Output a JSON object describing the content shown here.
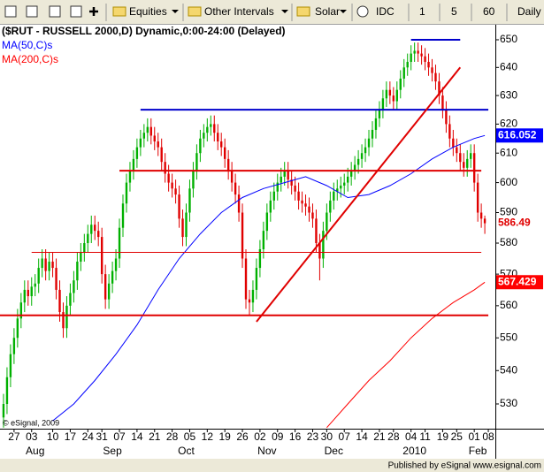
{
  "toolbar": {
    "items": [
      "Equities",
      "Other Intervals",
      "Solar",
      "IDC",
      "1",
      "5",
      "60",
      "Daily"
    ]
  },
  "chart_data": {
    "type": "candlestick",
    "title": "($RUT - RUSSELL 2000,D) Dynamic,0:00-24:00 (Delayed)",
    "copyright": "© eSignal, 2009",
    "log_scale": true,
    "grid": false,
    "legend": "top-left",
    "up_color": "#00b000",
    "down_color": "#e00000",
    "xlim": [
      -1,
      140
    ],
    "ylim": [
      522.7,
      655.5
    ],
    "yticks": [
      530,
      540,
      550,
      560,
      570,
      580,
      590,
      600,
      610,
      620,
      630,
      640,
      650
    ],
    "xticks": [
      {
        "value": 3,
        "label": "27"
      },
      {
        "value": 8,
        "label": "03"
      },
      {
        "value": 14,
        "label": "10"
      },
      {
        "value": 19,
        "label": "17"
      },
      {
        "value": 24,
        "label": "24"
      },
      {
        "value": 28,
        "label": "31"
      },
      {
        "value": 33,
        "label": "07"
      },
      {
        "value": 38,
        "label": "14"
      },
      {
        "value": 43,
        "label": "21"
      },
      {
        "value": 48,
        "label": "28"
      },
      {
        "value": 53,
        "label": "05"
      },
      {
        "value": 58,
        "label": "12"
      },
      {
        "value": 63,
        "label": "19"
      },
      {
        "value": 68,
        "label": "26"
      },
      {
        "value": 73,
        "label": "02"
      },
      {
        "value": 78,
        "label": "09"
      },
      {
        "value": 83,
        "label": "16"
      },
      {
        "value": 88,
        "label": "23"
      },
      {
        "value": 92,
        "label": "30"
      },
      {
        "value": 97,
        "label": "07"
      },
      {
        "value": 102,
        "label": "14"
      },
      {
        "value": 107,
        "label": "21"
      },
      {
        "value": 111,
        "label": "28"
      },
      {
        "value": 116,
        "label": "04"
      },
      {
        "value": 120,
        "label": "11"
      },
      {
        "value": 125,
        "label": "19"
      },
      {
        "value": 129,
        "label": "25"
      },
      {
        "value": 134,
        "label": "01"
      },
      {
        "value": 138,
        "label": "08"
      }
    ],
    "month_ticks": [
      {
        "value": 9,
        "label": "Aug"
      },
      {
        "value": 31,
        "label": "Sep"
      },
      {
        "value": 52,
        "label": "Oct"
      },
      {
        "value": 75,
        "label": "Nov"
      },
      {
        "value": 94,
        "label": "Dec"
      },
      {
        "value": 117,
        "label": "2010"
      },
      {
        "value": 135,
        "label": "Feb"
      }
    ],
    "open": [
      526,
      530,
      538,
      545,
      550,
      556,
      561,
      565,
      563,
      566,
      567,
      572,
      575,
      571,
      574,
      572,
      565,
      558,
      553,
      560,
      564,
      568,
      574,
      577,
      580,
      583,
      586,
      584,
      582,
      570,
      562,
      567,
      571,
      575,
      585,
      593,
      600,
      604,
      608,
      612,
      615,
      617,
      619,
      616,
      614,
      612,
      607,
      603,
      600,
      598,
      596,
      588,
      582,
      590,
      598,
      604,
      610,
      615,
      617,
      619,
      620,
      617,
      614,
      612,
      608,
      604,
      600,
      596,
      590,
      575,
      562,
      561,
      565,
      572,
      578,
      584,
      590,
      594,
      597,
      600,
      602,
      604,
      601,
      599,
      597,
      594,
      593,
      592,
      590,
      588,
      580,
      575,
      584,
      590,
      594,
      597,
      598,
      599,
      600,
      602,
      604,
      606,
      608,
      610,
      612,
      615,
      618,
      622,
      625,
      629,
      632,
      630,
      628,
      632,
      636,
      640,
      642,
      645,
      646,
      645,
      644,
      642,
      640,
      638,
      635,
      630,
      625,
      620,
      615,
      612,
      610,
      607,
      605,
      608,
      610,
      600,
      590,
      588
    ],
    "high": [
      533,
      541,
      548,
      553,
      559,
      564,
      568,
      568,
      569,
      570,
      575,
      578,
      578,
      577,
      577,
      575,
      568,
      561,
      563,
      567,
      571,
      577,
      580,
      583,
      586,
      589,
      589,
      587,
      585,
      573,
      570,
      574,
      578,
      588,
      596,
      603,
      607,
      611,
      615,
      618,
      620,
      622,
      622,
      619,
      617,
      615,
      610,
      606,
      603,
      601,
      599,
      591,
      593,
      601,
      607,
      613,
      618,
      620,
      622,
      623,
      623,
      620,
      617,
      615,
      611,
      607,
      603,
      599,
      593,
      578,
      565,
      568,
      575,
      581,
      587,
      593,
      597,
      600,
      603,
      605,
      607,
      607,
      604,
      602,
      600,
      597,
      596,
      595,
      593,
      591,
      583,
      587,
      593,
      597,
      600,
      601,
      602,
      603,
      605,
      607,
      609,
      611,
      613,
      615,
      618,
      621,
      625,
      628,
      632,
      635,
      635,
      633,
      635,
      639,
      643,
      645,
      648,
      649,
      649,
      648,
      647,
      645,
      643,
      641,
      638,
      633,
      628,
      623,
      618,
      615,
      613,
      610,
      611,
      613,
      613,
      603,
      593,
      589
    ],
    "low": [
      523,
      527,
      535,
      542,
      547,
      553,
      558,
      560,
      560,
      563,
      564,
      569,
      568,
      568,
      569,
      562,
      555,
      550,
      550,
      557,
      561,
      565,
      571,
      574,
      577,
      580,
      581,
      579,
      567,
      559,
      559,
      564,
      568,
      572,
      582,
      590,
      597,
      601,
      605,
      609,
      612,
      614,
      613,
      611,
      609,
      604,
      600,
      597,
      595,
      593,
      585,
      579,
      579,
      587,
      595,
      601,
      607,
      612,
      614,
      616,
      614,
      611,
      609,
      605,
      601,
      597,
      593,
      587,
      572,
      559,
      557,
      558,
      562,
      569,
      575,
      581,
      587,
      591,
      594,
      597,
      599,
      598,
      596,
      594,
      591,
      590,
      589,
      587,
      585,
      577,
      568,
      572,
      581,
      587,
      591,
      594,
      595,
      596,
      597,
      599,
      601,
      603,
      605,
      607,
      609,
      612,
      615,
      619,
      622,
      626,
      627,
      625,
      625,
      629,
      633,
      637,
      639,
      642,
      642,
      641,
      639,
      637,
      635,
      632,
      627,
      622,
      617,
      612,
      609,
      607,
      604,
      602,
      602,
      605,
      597,
      587,
      585,
      583
    ],
    "close": [
      530,
      538,
      545,
      550,
      556,
      561,
      565,
      563,
      566,
      567,
      572,
      575,
      571,
      574,
      572,
      565,
      558,
      553,
      560,
      564,
      568,
      574,
      577,
      580,
      583,
      586,
      584,
      582,
      570,
      562,
      567,
      571,
      575,
      585,
      593,
      600,
      604,
      608,
      612,
      615,
      617,
      619,
      616,
      614,
      612,
      607,
      603,
      600,
      598,
      596,
      588,
      582,
      590,
      598,
      604,
      610,
      615,
      617,
      619,
      620,
      617,
      614,
      612,
      608,
      604,
      600,
      596,
      590,
      575,
      562,
      561,
      565,
      572,
      578,
      584,
      590,
      594,
      597,
      600,
      602,
      604,
      601,
      599,
      597,
      594,
      593,
      592,
      590,
      588,
      580,
      575,
      584,
      590,
      594,
      597,
      598,
      599,
      600,
      602,
      604,
      606,
      608,
      610,
      612,
      615,
      618,
      622,
      625,
      629,
      632,
      630,
      628,
      632,
      636,
      640,
      642,
      645,
      646,
      645,
      644,
      642,
      640,
      638,
      635,
      630,
      625,
      620,
      615,
      612,
      610,
      607,
      605,
      608,
      610,
      600,
      590,
      588,
      586.49
    ],
    "series": [
      {
        "name": "MA(50,C)s",
        "color": "#0000ff",
        "x": [
          14,
          20,
          26,
          32,
          38,
          44,
          50,
          56,
          62,
          68,
          74,
          80,
          86,
          92,
          98,
          104,
          110,
          116,
          122,
          128,
          134,
          137
        ],
        "values": [
          525,
          530,
          537,
          545,
          554,
          565,
          575,
          583,
          590,
          595,
          598,
          600,
          602,
          599,
          595,
          596,
          599,
          603,
          608,
          612,
          615,
          616.052
        ]
      },
      {
        "name": "MA(200,C)s",
        "color": "#ff0000",
        "x": [
          92,
          98,
          104,
          110,
          116,
          122,
          128,
          134,
          137
        ],
        "values": [
          523,
          530,
          537,
          543,
          550,
          556,
          561,
          565,
          567.429
        ]
      }
    ],
    "trendlines": [
      {
        "x1": 116,
        "x2": 130,
        "y1": 650,
        "y2": 650,
        "color": "#0000cc"
      },
      {
        "x1": 39,
        "x2": 138,
        "y1": 625,
        "y2": 625,
        "color": "#0000cc"
      },
      {
        "x1": 33,
        "x2": 136,
        "y1": 604,
        "y2": 604,
        "color": "#e00000"
      },
      {
        "x1": 8,
        "x2": 136,
        "y1": 577,
        "y2": 577,
        "color": "#e00000"
      },
      {
        "x1": -1,
        "x2": 138,
        "y1": 557,
        "y2": 557,
        "color": "#e00000"
      },
      {
        "x1": 72,
        "x2": 130,
        "y1": 555,
        "y2": 640,
        "color": "#e00000"
      }
    ]
  },
  "footer": "Published by eSignal www.esignal.com"
}
